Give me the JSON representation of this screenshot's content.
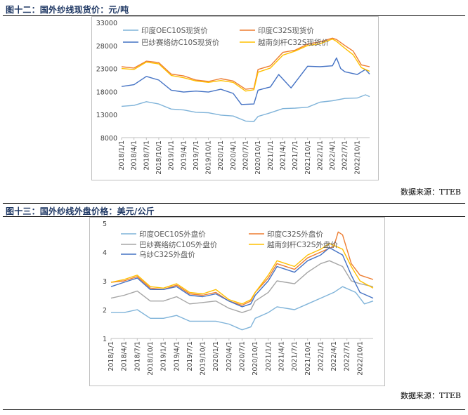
{
  "figure1": {
    "title": "图十二：国外纱线现货价：元/吨",
    "source": "数据来源：TTEB"
  },
  "figure2": {
    "title": "图十三：国外纱线外盘价格：美元/公斤",
    "source": "数据来源：TTEB"
  },
  "chart_data": [
    {
      "type": "line",
      "title": "",
      "xlabel": "",
      "ylabel": "",
      "ylim": [
        8000,
        33000
      ],
      "yticks": [
        8000,
        13000,
        18000,
        23000,
        28000,
        33000
      ],
      "xticks": [
        "2018/1/1",
        "2018/4/1",
        "2018/7/1",
        "2018/10/1",
        "2019/1/1",
        "2019/4/1",
        "2019/7/1",
        "2019/10/1",
        "2020/1/1",
        "2020/4/1",
        "2020/7/1",
        "2020/10/1",
        "2021/1/1",
        "2021/4/1",
        "2021/7/1",
        "2021/10/1",
        "2022/1/1",
        "2022/4/1",
        "2022/7/1",
        "2022/10/1"
      ],
      "grid": false,
      "legend": "top",
      "series": [
        {
          "name": "印度OEC10S现货价",
          "color": "#7fb3d9",
          "points": [
            [
              "2018/1/1",
              14800
            ],
            [
              "2018/4/1",
              15000
            ],
            [
              "2018/7/1",
              15800
            ],
            [
              "2018/10/1",
              15300
            ],
            [
              "2019/1/1",
              14200
            ],
            [
              "2019/4/1",
              14000
            ],
            [
              "2019/7/1",
              13500
            ],
            [
              "2019/10/1",
              13400
            ],
            [
              "2020/1/1",
              12900
            ],
            [
              "2020/4/1",
              12700
            ],
            [
              "2020/7/1",
              11600
            ],
            [
              "2020/9/1",
              11500
            ],
            [
              "2020/10/1",
              12600
            ],
            [
              "2021/1/1",
              13400
            ],
            [
              "2021/4/1",
              14300
            ],
            [
              "2021/7/1",
              14400
            ],
            [
              "2021/10/1",
              14600
            ],
            [
              "2022/1/1",
              15700
            ],
            [
              "2022/4/1",
              16000
            ],
            [
              "2022/7/1",
              16500
            ],
            [
              "2022/10/1",
              16600
            ],
            [
              "2022/12/1",
              17300
            ],
            [
              "2023/1/1",
              16900
            ]
          ]
        },
        {
          "name": "印度C32S现货价",
          "color": "#ed7d31",
          "points": [
            [
              "2018/1/1",
              23400
            ],
            [
              "2018/4/1",
              23100
            ],
            [
              "2018/7/1",
              24600
            ],
            [
              "2018/10/1",
              24300
            ],
            [
              "2019/1/1",
              21800
            ],
            [
              "2019/4/1",
              21400
            ],
            [
              "2019/7/1",
              20500
            ],
            [
              "2019/10/1",
              20200
            ],
            [
              "2020/1/1",
              20800
            ],
            [
              "2020/4/1",
              20300
            ],
            [
              "2020/7/1",
              18500
            ],
            [
              "2020/9/1",
              18700
            ],
            [
              "2020/10/1",
              22800
            ],
            [
              "2021/1/1",
              23600
            ],
            [
              "2021/4/1",
              26500
            ],
            [
              "2021/7/1",
              27000
            ],
            [
              "2021/10/1",
              28300
            ],
            [
              "2022/1/1",
              28800
            ],
            [
              "2022/4/1",
              29600
            ],
            [
              "2022/5/1",
              29300
            ],
            [
              "2022/7/1",
              28000
            ],
            [
              "2022/9/1",
              26800
            ],
            [
              "2022/11/1",
              23800
            ],
            [
              "2023/1/1",
              23400
            ]
          ]
        },
        {
          "name": "巴纱赛络纺C10S现货价",
          "color": "#4472c4",
          "points": [
            [
              "2018/1/1",
              19100
            ],
            [
              "2018/4/1",
              19500
            ],
            [
              "2018/7/1",
              21300
            ],
            [
              "2018/10/1",
              20500
            ],
            [
              "2019/1/1",
              18300
            ],
            [
              "2019/4/1",
              17900
            ],
            [
              "2019/7/1",
              18100
            ],
            [
              "2019/10/1",
              17900
            ],
            [
              "2020/1/1",
              18500
            ],
            [
              "2020/4/1",
              17600
            ],
            [
              "2020/6/1",
              15200
            ],
            [
              "2020/9/1",
              15300
            ],
            [
              "2020/10/1",
              18300
            ],
            [
              "2021/1/1",
              19000
            ],
            [
              "2021/3/1",
              21700
            ],
            [
              "2021/6/1",
              18800
            ],
            [
              "2021/10/1",
              23500
            ],
            [
              "2022/1/1",
              23400
            ],
            [
              "2022/4/1",
              23600
            ],
            [
              "2022/5/1",
              25300
            ],
            [
              "2022/6/1",
              23000
            ],
            [
              "2022/7/1",
              22300
            ],
            [
              "2022/10/1",
              21700
            ],
            [
              "2022/12/1",
              22800
            ],
            [
              "2023/1/1",
              21800
            ]
          ]
        },
        {
          "name": "越南剑杆C32S现货价",
          "color": "#ffc000",
          "points": [
            [
              "2018/1/1",
              23000
            ],
            [
              "2018/4/1",
              22800
            ],
            [
              "2018/7/1",
              24400
            ],
            [
              "2018/10/1",
              24000
            ],
            [
              "2019/1/1",
              21500
            ],
            [
              "2019/4/1",
              21000
            ],
            [
              "2019/7/1",
              20300
            ],
            [
              "2019/10/1",
              20000
            ],
            [
              "2020/1/1",
              20400
            ],
            [
              "2020/4/1",
              20000
            ],
            [
              "2020/7/1",
              18100
            ],
            [
              "2020/9/1",
              18400
            ],
            [
              "2020/10/1",
              22200
            ],
            [
              "2021/1/1",
              23100
            ],
            [
              "2021/4/1",
              25900
            ],
            [
              "2021/7/1",
              26800
            ],
            [
              "2021/10/1",
              28000
            ],
            [
              "2022/1/1",
              28400
            ],
            [
              "2022/4/1",
              29400
            ],
            [
              "2022/5/1",
              28900
            ],
            [
              "2022/7/1",
              27400
            ],
            [
              "2022/9/1",
              26000
            ],
            [
              "2022/11/1",
              23200
            ],
            [
              "2023/1/1",
              22400
            ]
          ]
        }
      ]
    },
    {
      "type": "line",
      "title": "",
      "xlabel": "",
      "ylabel": "",
      "ylim": [
        1,
        5
      ],
      "yticks": [
        1,
        2,
        3,
        4,
        5
      ],
      "xticks": [
        "2018/1/1",
        "2018/4/1",
        "2018/7/1",
        "2018/10/1",
        "2019/1/1",
        "2019/4/1",
        "2019/7/1",
        "2019/10/1",
        "2020/1/1",
        "2020/4/1",
        "2020/7/1",
        "2020/10/1",
        "2021/1/1",
        "2021/4/1",
        "2021/7/1",
        "2021/10/1",
        "2022/1/1",
        "2022/4/1",
        "2022/7/1",
        "2022/10/1"
      ],
      "grid": false,
      "legend": "top",
      "series": [
        {
          "name": "印度OEC10S外盘价",
          "color": "#7fb3d9",
          "points": [
            [
              "2018/1/1",
              1.9
            ],
            [
              "2018/4/1",
              1.9
            ],
            [
              "2018/7/1",
              2.0
            ],
            [
              "2018/10/1",
              1.7
            ],
            [
              "2019/1/1",
              1.7
            ],
            [
              "2019/4/1",
              1.8
            ],
            [
              "2019/7/1",
              1.6
            ],
            [
              "2019/10/1",
              1.6
            ],
            [
              "2020/1/1",
              1.6
            ],
            [
              "2020/4/1",
              1.5
            ],
            [
              "2020/7/1",
              1.3
            ],
            [
              "2020/9/1",
              1.4
            ],
            [
              "2020/10/1",
              1.7
            ],
            [
              "2021/1/1",
              1.9
            ],
            [
              "2021/3/1",
              2.1
            ],
            [
              "2021/7/1",
              2.0
            ],
            [
              "2021/10/1",
              2.2
            ],
            [
              "2022/1/1",
              2.4
            ],
            [
              "2022/4/1",
              2.6
            ],
            [
              "2022/6/1",
              2.8
            ],
            [
              "2022/9/1",
              2.6
            ],
            [
              "2022/11/1",
              2.2
            ],
            [
              "2023/1/1",
              2.3
            ]
          ]
        },
        {
          "name": "印度C32S外盘价",
          "color": "#ed7d31",
          "points": [
            [
              "2018/1/1",
              2.95
            ],
            [
              "2018/4/1",
              3.0
            ],
            [
              "2018/7/1",
              3.15
            ],
            [
              "2018/10/1",
              2.75
            ],
            [
              "2019/1/1",
              2.7
            ],
            [
              "2019/4/1",
              2.85
            ],
            [
              "2019/7/1",
              2.55
            ],
            [
              "2019/10/1",
              2.5
            ],
            [
              "2020/1/1",
              2.6
            ],
            [
              "2020/4/1",
              2.3
            ],
            [
              "2020/7/1",
              2.15
            ],
            [
              "2020/9/1",
              2.3
            ],
            [
              "2020/10/1",
              2.6
            ],
            [
              "2021/1/1",
              3.1
            ],
            [
              "2021/3/1",
              3.6
            ],
            [
              "2021/7/1",
              3.4
            ],
            [
              "2021/10/1",
              3.8
            ],
            [
              "2022/1/1",
              4.0
            ],
            [
              "2022/4/1",
              4.2
            ],
            [
              "2022/5/1",
              4.7
            ],
            [
              "2022/6/1",
              4.6
            ],
            [
              "2022/8/1",
              3.6
            ],
            [
              "2022/10/1",
              3.2
            ],
            [
              "2023/1/1",
              3.05
            ]
          ]
        },
        {
          "name": "巴纱赛络纺C10S外盘价",
          "color": "#a5a5a5",
          "points": [
            [
              "2018/1/1",
              2.4
            ],
            [
              "2018/4/1",
              2.5
            ],
            [
              "2018/7/1",
              2.65
            ],
            [
              "2018/10/1",
              2.3
            ],
            [
              "2019/1/1",
              2.3
            ],
            [
              "2019/4/1",
              2.45
            ],
            [
              "2019/7/1",
              2.2
            ],
            [
              "2019/10/1",
              2.25
            ],
            [
              "2020/1/1",
              2.3
            ],
            [
              "2020/4/1",
              2.05
            ],
            [
              "2020/7/1",
              1.9
            ],
            [
              "2020/9/1",
              2.0
            ],
            [
              "2020/10/1",
              2.3
            ],
            [
              "2021/1/1",
              2.6
            ],
            [
              "2021/3/1",
              3.0
            ],
            [
              "2021/7/1",
              2.9
            ],
            [
              "2021/10/1",
              3.3
            ],
            [
              "2022/1/1",
              3.6
            ],
            [
              "2022/3/1",
              3.7
            ],
            [
              "2022/6/1",
              3.5
            ],
            [
              "2022/8/1",
              3.0
            ],
            [
              "2022/10/1",
              2.9
            ],
            [
              "2023/1/1",
              2.8
            ]
          ]
        },
        {
          "name": "越南剑杆C32S外盘价",
          "color": "#ffc000",
          "points": [
            [
              "2018/1/1",
              2.95
            ],
            [
              "2018/4/1",
              3.05
            ],
            [
              "2018/7/1",
              3.2
            ],
            [
              "2018/10/1",
              2.8
            ],
            [
              "2019/1/1",
              2.75
            ],
            [
              "2019/4/1",
              2.9
            ],
            [
              "2019/7/1",
              2.6
            ],
            [
              "2019/10/1",
              2.55
            ],
            [
              "2020/1/1",
              2.7
            ],
            [
              "2020/4/1",
              2.35
            ],
            [
              "2020/7/1",
              2.2
            ],
            [
              "2020/9/1",
              2.35
            ],
            [
              "2020/10/1",
              2.6
            ],
            [
              "2021/1/1",
              3.2
            ],
            [
              "2021/3/1",
              3.7
            ],
            [
              "2021/7/1",
              3.5
            ],
            [
              "2021/10/1",
              3.9
            ],
            [
              "2022/1/1",
              4.1
            ],
            [
              "2022/3/1",
              4.3
            ],
            [
              "2022/6/1",
              4.1
            ],
            [
              "2022/8/1",
              3.5
            ],
            [
              "2022/10/1",
              3.0
            ],
            [
              "2023/1/1",
              2.75
            ]
          ]
        },
        {
          "name": "乌纱C32S外盘价",
          "color": "#4472c4",
          "points": [
            [
              "2018/1/1",
              2.8
            ],
            [
              "2018/4/1",
              2.95
            ],
            [
              "2018/7/1",
              3.1
            ],
            [
              "2018/10/1",
              2.7
            ],
            [
              "2019/1/1",
              2.7
            ],
            [
              "2019/4/1",
              2.8
            ],
            [
              "2019/7/1",
              2.5
            ],
            [
              "2019/10/1",
              2.45
            ],
            [
              "2020/1/1",
              2.55
            ],
            [
              "2020/4/1",
              2.3
            ],
            [
              "2020/7/1",
              2.1
            ],
            [
              "2020/9/1",
              2.2
            ],
            [
              "2020/10/1",
              2.5
            ],
            [
              "2021/1/1",
              3.0
            ],
            [
              "2021/3/1",
              3.5
            ],
            [
              "2021/7/1",
              3.3
            ],
            [
              "2021/10/1",
              3.7
            ],
            [
              "2022/1/1",
              3.9
            ],
            [
              "2022/3/1",
              4.15
            ],
            [
              "2022/6/1",
              3.9
            ],
            [
              "2022/8/1",
              3.2
            ],
            [
              "2022/10/1",
              2.6
            ],
            [
              "2023/1/1",
              2.4
            ]
          ]
        }
      ]
    }
  ]
}
